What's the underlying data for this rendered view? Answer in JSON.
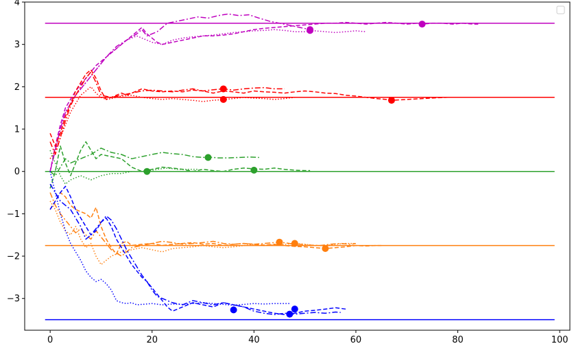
{
  "chart_data": {
    "type": "line",
    "title": "",
    "xlabel": "",
    "ylabel": "",
    "xlim": [
      -5,
      102
    ],
    "ylim": [
      -3.75,
      4.0
    ],
    "x_ticks": [
      0,
      20,
      40,
      60,
      80,
      100
    ],
    "y_ticks": [
      -3,
      -2,
      -1,
      0,
      1,
      2,
      3,
      4
    ],
    "x_tick_labels": [
      "0",
      "20",
      "40",
      "60",
      "80",
      "100"
    ],
    "y_tick_labels": [
      "−3",
      "−2",
      "−1",
      "0",
      "1",
      "2",
      "3",
      "4"
    ],
    "legend": {
      "placement": "top-right",
      "entries": []
    },
    "reference_lines": [
      {
        "y": 3.5,
        "color": "#bf00bf"
      },
      {
        "y": 1.75,
        "color": "#ff0000"
      },
      {
        "y": 0.0,
        "color": "#2ca02c"
      },
      {
        "y": -1.75,
        "color": "#ff7f0e"
      },
      {
        "y": -3.5,
        "color": "#0000ff"
      }
    ],
    "reference_x_range": [
      -1,
      99
    ],
    "series": [
      {
        "color": "#bf00bf",
        "style": "dashdot",
        "x": [
          0,
          1,
          2,
          3,
          5,
          7,
          9,
          11,
          13,
          15,
          17,
          18,
          19,
          21,
          23,
          25,
          27,
          29,
          31,
          33,
          35,
          37,
          39,
          41,
          43,
          45,
          47,
          49,
          51
        ],
        "y": [
          0.0,
          0.5,
          1.0,
          1.4,
          1.8,
          2.1,
          2.4,
          2.7,
          2.95,
          3.1,
          3.25,
          3.35,
          3.2,
          3.3,
          3.5,
          3.55,
          3.6,
          3.65,
          3.62,
          3.68,
          3.72,
          3.68,
          3.7,
          3.62,
          3.55,
          3.5,
          3.45,
          3.4,
          3.35
        ],
        "marker": {
          "x": 51,
          "y": 3.35
        }
      },
      {
        "color": "#bf00bf",
        "style": "dashed",
        "x": [
          0,
          1,
          2,
          3,
          5,
          7,
          9,
          11,
          13,
          15,
          17,
          18,
          19,
          20,
          21,
          22,
          24,
          26,
          28,
          30,
          32,
          34,
          36,
          38,
          40,
          42,
          44,
          46,
          48,
          50,
          52,
          54,
          56,
          58,
          60,
          62,
          64,
          66,
          68,
          70,
          72,
          73,
          75,
          77,
          79,
          81,
          83,
          84
        ],
        "y": [
          0.0,
          0.6,
          1.1,
          1.5,
          1.9,
          2.2,
          2.5,
          2.7,
          2.9,
          3.1,
          3.3,
          3.4,
          3.25,
          3.15,
          3.05,
          3.0,
          3.05,
          3.1,
          3.15,
          3.2,
          3.2,
          3.22,
          3.25,
          3.3,
          3.35,
          3.38,
          3.4,
          3.42,
          3.44,
          3.46,
          3.48,
          3.5,
          3.5,
          3.52,
          3.5,
          3.48,
          3.5,
          3.52,
          3.5,
          3.48,
          3.5,
          3.48,
          3.5,
          3.5,
          3.48,
          3.5,
          3.48,
          3.48
        ],
        "marker": {
          "x": 73,
          "y": 3.48
        }
      },
      {
        "color": "#bf00bf",
        "style": "dotted",
        "x": [
          0,
          1,
          2,
          3,
          5,
          7,
          9,
          11,
          13,
          15,
          17,
          18,
          20,
          22,
          24,
          26,
          28,
          30,
          32,
          34,
          36,
          38,
          40,
          42,
          44,
          46,
          48,
          50,
          52,
          54,
          56,
          58,
          60,
          62
        ],
        "y": [
          0.0,
          0.5,
          1.0,
          1.4,
          1.8,
          2.1,
          2.4,
          2.7,
          2.9,
          3.1,
          3.2,
          3.15,
          3.05,
          3.0,
          3.1,
          3.15,
          3.18,
          3.2,
          3.22,
          3.25,
          3.28,
          3.3,
          3.32,
          3.33,
          3.35,
          3.33,
          3.3,
          3.3,
          3.32,
          3.3,
          3.28,
          3.3,
          3.32,
          3.3
        ],
        "marker": {
          "x": 51,
          "y": 3.33
        }
      },
      {
        "color": "#ff0000",
        "style": "dashed",
        "x": [
          0,
          1,
          2,
          3,
          4,
          5,
          6,
          7,
          8,
          9,
          10,
          11,
          12,
          13,
          14,
          15,
          16,
          17,
          18,
          20,
          22,
          24,
          26,
          28,
          30,
          32,
          34,
          36,
          38,
          40,
          42,
          44,
          46,
          48,
          50,
          52,
          54,
          56,
          58,
          60,
          62,
          64,
          66,
          67,
          70,
          73,
          76,
          78
        ],
        "y": [
          0.9,
          0.6,
          0.9,
          1.3,
          1.6,
          1.9,
          2.1,
          2.3,
          2.4,
          2.2,
          1.9,
          1.7,
          1.75,
          1.8,
          1.85,
          1.8,
          1.85,
          1.9,
          1.95,
          1.9,
          1.88,
          1.9,
          1.88,
          1.92,
          1.9,
          1.85,
          1.9,
          1.88,
          1.85,
          1.9,
          1.88,
          1.87,
          1.85,
          1.88,
          1.9,
          1.88,
          1.85,
          1.84,
          1.8,
          1.78,
          1.75,
          1.72,
          1.7,
          1.68,
          1.7,
          1.72,
          1.74,
          1.75
        ],
        "marker": {
          "x": 67,
          "y": 1.68
        }
      },
      {
        "color": "#ff0000",
        "style": "dashdot",
        "x": [
          0,
          1,
          2,
          3,
          4,
          5,
          6,
          7,
          8,
          9,
          10,
          12,
          14,
          16,
          18,
          20,
          22,
          24,
          26,
          28,
          30,
          32,
          34,
          36,
          38,
          40,
          42,
          44,
          46
        ],
        "y": [
          0.7,
          0.4,
          0.8,
          1.2,
          1.55,
          1.8,
          2.0,
          2.2,
          2.35,
          2.1,
          1.8,
          1.75,
          1.8,
          1.85,
          1.9,
          1.92,
          1.9,
          1.88,
          1.92,
          1.95,
          1.9,
          1.93,
          1.95,
          1.92,
          1.95,
          1.97,
          1.98,
          1.95,
          1.95
        ],
        "marker": {
          "x": 34,
          "y": 1.95
        }
      },
      {
        "color": "#ff0000",
        "style": "dotted",
        "x": [
          0,
          1,
          2,
          3,
          4,
          5,
          6,
          7,
          8,
          9,
          10,
          11,
          12,
          14,
          16,
          18,
          20,
          22,
          24,
          26,
          28,
          30,
          32,
          34,
          36,
          38,
          40,
          42,
          44,
          46,
          48,
          50
        ],
        "y": [
          0.3,
          0.5,
          0.8,
          1.1,
          1.4,
          1.6,
          1.8,
          1.9,
          2.0,
          1.85,
          1.75,
          1.7,
          1.72,
          1.78,
          1.8,
          1.75,
          1.72,
          1.7,
          1.72,
          1.7,
          1.68,
          1.65,
          1.68,
          1.7,
          1.72,
          1.75,
          1.73,
          1.72,
          1.7,
          1.72,
          1.75,
          1.75
        ],
        "marker": {
          "x": 34,
          "y": 1.7
        }
      },
      {
        "color": "#2ca02c",
        "style": "dashed",
        "x": [
          0,
          1,
          2,
          3,
          4,
          5,
          6,
          7,
          8,
          9,
          10,
          12,
          14,
          16,
          18,
          20,
          22,
          24,
          26,
          28,
          30,
          32,
          34,
          36,
          38,
          40,
          42,
          44,
          46,
          48,
          50,
          51
        ],
        "y": [
          -0.4,
          0.0,
          0.6,
          0.2,
          -0.1,
          0.2,
          0.5,
          0.7,
          0.5,
          0.3,
          0.4,
          0.35,
          0.3,
          0.1,
          0.0,
          0.05,
          0.1,
          0.08,
          0.05,
          0.0,
          0.05,
          0.02,
          0.0,
          0.05,
          0.08,
          0.06,
          0.05,
          0.08,
          0.05,
          0.03,
          0.02,
          0.02
        ],
        "marker": {
          "x": 40,
          "y": 0.03
        }
      },
      {
        "color": "#2ca02c",
        "style": "dashdot",
        "x": [
          0,
          1,
          2,
          3,
          4,
          6,
          8,
          10,
          12,
          14,
          16,
          18,
          20,
          22,
          24,
          26,
          28,
          30,
          31,
          33,
          35,
          37,
          39,
          41
        ],
        "y": [
          0.0,
          -0.1,
          0.1,
          0.3,
          0.2,
          0.3,
          0.4,
          0.55,
          0.45,
          0.4,
          0.3,
          0.35,
          0.4,
          0.45,
          0.42,
          0.4,
          0.35,
          0.33,
          0.34,
          0.32,
          0.32,
          0.33,
          0.34,
          0.33
        ],
        "marker": {
          "x": 31,
          "y": 0.33
        }
      },
      {
        "color": "#2ca02c",
        "style": "dotted",
        "x": [
          0,
          1,
          2,
          3,
          4,
          6,
          8,
          10,
          12,
          14,
          16,
          18,
          19,
          21,
          23,
          25,
          27,
          29
        ],
        "y": [
          0.5,
          0.2,
          -0.1,
          -0.3,
          -0.2,
          -0.1,
          -0.2,
          -0.1,
          -0.05,
          -0.05,
          0.0,
          0.0,
          0.0,
          0.05,
          0.08,
          0.05,
          0.05,
          0.05
        ],
        "marker": {
          "x": 19,
          "y": 0.0
        }
      },
      {
        "color": "#ff7f0e",
        "style": "dashed",
        "x": [
          0,
          1,
          2,
          3,
          4,
          5,
          6,
          7,
          8,
          9,
          10,
          11,
          12,
          13,
          14,
          15,
          16,
          18,
          20,
          22,
          24,
          26,
          28,
          30,
          32,
          34,
          36,
          38,
          40,
          42,
          44,
          46,
          48,
          50,
          52,
          54,
          56,
          58,
          60,
          62,
          64,
          65
        ],
        "y": [
          -0.9,
          -0.7,
          -0.5,
          -0.6,
          -0.8,
          -0.9,
          -0.95,
          -1.0,
          -1.1,
          -0.85,
          -1.3,
          -1.6,
          -1.8,
          -1.95,
          -1.7,
          -1.65,
          -1.75,
          -1.72,
          -1.7,
          -1.75,
          -1.72,
          -1.7,
          -1.68,
          -1.72,
          -1.7,
          -1.75,
          -1.72,
          -1.7,
          -1.72,
          -1.74,
          -1.72,
          -1.75,
          -1.77,
          -1.78,
          -1.8,
          -1.82,
          -1.8,
          -1.78,
          -1.75,
          -1.76,
          -1.75,
          -1.75
        ],
        "marker": {
          "x": 54,
          "y": -1.82
        }
      },
      {
        "color": "#ff7f0e",
        "style": "dashdot",
        "x": [
          0,
          1,
          2,
          3,
          4,
          5,
          6,
          7,
          8,
          9,
          10,
          12,
          14,
          16,
          18,
          20,
          22,
          24,
          26,
          28,
          30,
          32,
          34,
          36,
          38,
          40,
          42,
          44,
          45,
          47,
          49,
          51,
          53,
          55,
          57,
          59,
          60
        ],
        "y": [
          -0.5,
          -0.8,
          -1.0,
          -1.15,
          -1.3,
          -1.45,
          -1.35,
          -1.5,
          -1.6,
          -1.4,
          -1.55,
          -1.85,
          -2.0,
          -1.8,
          -1.75,
          -1.7,
          -1.65,
          -1.68,
          -1.72,
          -1.7,
          -1.68,
          -1.65,
          -1.7,
          -1.72,
          -1.7,
          -1.72,
          -1.7,
          -1.68,
          -1.67,
          -1.7,
          -1.72,
          -1.74,
          -1.75,
          -1.72,
          -1.7,
          -1.72,
          -1.7
        ],
        "marker": {
          "x": 45,
          "y": -1.67
        }
      },
      {
        "color": "#ff7f0e",
        "style": "dotted",
        "x": [
          0,
          1,
          2,
          3,
          4,
          5,
          6,
          7,
          8,
          9,
          10,
          12,
          14,
          16,
          18,
          20,
          22,
          24,
          26,
          28,
          30,
          32,
          34,
          36,
          38,
          40,
          42,
          44,
          46,
          48,
          50,
          52,
          54,
          56,
          58,
          60
        ],
        "y": [
          -0.7,
          -0.9,
          -1.2,
          -1.4,
          -1.5,
          -1.3,
          -1.6,
          -1.8,
          -1.7,
          -2.0,
          -2.2,
          -2.0,
          -1.9,
          -1.85,
          -1.8,
          -1.85,
          -1.9,
          -1.82,
          -1.8,
          -1.78,
          -1.75,
          -1.78,
          -1.8,
          -1.78,
          -1.75,
          -1.72,
          -1.75,
          -1.73,
          -1.72,
          -1.7,
          -1.72,
          -1.75,
          -1.75,
          -1.72,
          -1.7,
          -1.7
        ],
        "marker": {
          "x": 48,
          "y": -1.7
        }
      },
      {
        "color": "#0000ff",
        "style": "dashed",
        "x": [
          0,
          1,
          2,
          3,
          4,
          5,
          6,
          7,
          8,
          9,
          10,
          11,
          12,
          13,
          14,
          15,
          16,
          17,
          18,
          19,
          20,
          21,
          22,
          23,
          24,
          26,
          28,
          30,
          32,
          34,
          36,
          38,
          40,
          42,
          44,
          46,
          48,
          50,
          52,
          54,
          56,
          58
        ],
        "y": [
          -0.9,
          -0.7,
          -0.5,
          -0.35,
          -0.6,
          -0.9,
          -1.1,
          -1.3,
          -1.5,
          -1.4,
          -1.2,
          -1.1,
          -1.3,
          -1.6,
          -1.8,
          -2.0,
          -2.2,
          -2.35,
          -2.5,
          -2.6,
          -2.75,
          -2.9,
          -3.05,
          -3.2,
          -3.3,
          -3.2,
          -3.1,
          -3.15,
          -3.2,
          -3.1,
          -3.15,
          -3.2,
          -3.25,
          -3.3,
          -3.35,
          -3.38,
          -3.35,
          -3.3,
          -3.28,
          -3.25,
          -3.22,
          -3.25
        ],
        "marker": {
          "x": 48,
          "y": -3.25
        }
      },
      {
        "color": "#0000ff",
        "style": "dashdot",
        "x": [
          0,
          1,
          2,
          3,
          4,
          5,
          6,
          7,
          8,
          9,
          10,
          11,
          12,
          13,
          14,
          15,
          16,
          17,
          18,
          19,
          20,
          21,
          22,
          23,
          24,
          26,
          28,
          30,
          32,
          34,
          36,
          38,
          40,
          42,
          44,
          46,
          48,
          50,
          52,
          54,
          56,
          57
        ],
        "y": [
          -0.3,
          -0.5,
          -0.7,
          -0.8,
          -0.9,
          -1.1,
          -1.3,
          -1.6,
          -1.5,
          -1.35,
          -1.2,
          -1.05,
          -1.15,
          -1.35,
          -1.6,
          -1.85,
          -2.05,
          -2.25,
          -2.45,
          -2.6,
          -2.8,
          -2.95,
          -3.0,
          -3.05,
          -3.1,
          -3.15,
          -3.05,
          -3.1,
          -3.15,
          -3.1,
          -3.15,
          -3.2,
          -3.3,
          -3.35,
          -3.38,
          -3.35,
          -3.37,
          -3.35,
          -3.33,
          -3.35,
          -3.32,
          -3.33
        ],
        "marker": {
          "x": 47,
          "y": -3.37
        }
      },
      {
        "color": "#0000ff",
        "style": "dotted",
        "x": [
          0,
          1,
          2,
          3,
          4,
          5,
          6,
          7,
          8,
          9,
          10,
          11,
          12,
          13,
          14,
          15,
          16,
          17,
          18,
          19,
          20,
          22,
          24,
          26,
          28,
          30,
          32,
          34,
          36,
          38,
          40,
          42,
          44,
          46,
          47
        ],
        "y": [
          0.0,
          -0.5,
          -1.0,
          -1.4,
          -1.7,
          -1.9,
          -2.1,
          -2.35,
          -2.5,
          -2.6,
          -2.55,
          -2.65,
          -2.8,
          -3.05,
          -3.1,
          -3.12,
          -3.1,
          -3.15,
          -3.14,
          -3.13,
          -3.12,
          -3.15,
          -3.13,
          -3.14,
          -3.12,
          -3.1,
          -3.12,
          -3.14,
          -3.16,
          -3.14,
          -3.12,
          -3.13,
          -3.12,
          -3.12,
          -3.12
        ],
        "marker": {
          "x": 36,
          "y": -3.27
        }
      }
    ]
  }
}
